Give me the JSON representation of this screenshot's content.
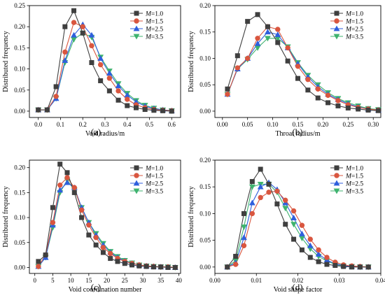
{
  "chart_data": [
    {
      "type": "line",
      "panel_label": "(a)",
      "xlabel": "Void radius/m",
      "ylabel": "Distributed frequency",
      "xlim": [
        -0.04,
        0.64
      ],
      "ylim": [
        -0.015,
        0.25
      ],
      "xticks": [
        0.0,
        0.1,
        0.2,
        0.3,
        0.4,
        0.5,
        0.6
      ],
      "xtick_labels": [
        "0.0",
        "0.1",
        "0.2",
        "0.3",
        "0.4",
        "0.5",
        "0.6"
      ],
      "yticks": [
        0.0,
        0.05,
        0.1,
        0.15,
        0.2,
        0.25
      ],
      "ytick_labels": [
        "0.00",
        "0.05",
        "0.10",
        "0.15",
        "0.20",
        "0.25"
      ],
      "legend_position": "top-right",
      "x": [
        0.0,
        0.04,
        0.08,
        0.12,
        0.16,
        0.2,
        0.24,
        0.28,
        0.32,
        0.36,
        0.4,
        0.44,
        0.48,
        0.52,
        0.56,
        0.6
      ],
      "series": [
        {
          "name": "M=1.0",
          "marker": "square",
          "color": "#3f3f3f",
          "values": [
            0.003,
            0.003,
            0.058,
            0.2,
            0.238,
            0.185,
            0.115,
            0.072,
            0.048,
            0.026,
            0.013,
            0.008,
            0.004,
            0.002,
            0.001,
            0.0
          ]
        },
        {
          "name": "M=1.5",
          "marker": "circle",
          "color": "#d9563f",
          "values": [
            0.003,
            0.003,
            0.035,
            0.14,
            0.21,
            0.2,
            0.155,
            0.11,
            0.078,
            0.048,
            0.028,
            0.015,
            0.008,
            0.004,
            0.002,
            0.001
          ]
        },
        {
          "name": "M=2.5",
          "marker": "triangle-up",
          "color": "#2f5fdd",
          "values": [
            0.003,
            0.003,
            0.03,
            0.12,
            0.18,
            0.205,
            0.18,
            0.125,
            0.09,
            0.06,
            0.038,
            0.022,
            0.012,
            0.006,
            0.003,
            0.001
          ]
        },
        {
          "name": "M=3.5",
          "marker": "triangle-down",
          "color": "#3fb36f",
          "values": [
            0.003,
            0.003,
            0.03,
            0.115,
            0.17,
            0.185,
            0.175,
            0.128,
            0.095,
            0.065,
            0.042,
            0.025,
            0.014,
            0.007,
            0.003,
            0.001
          ]
        }
      ]
    },
    {
      "type": "line",
      "panel_label": "(b)",
      "xlabel": "Throat radius/m",
      "ylabel": "Distributed frequency",
      "xlim": [
        -0.015,
        0.315
      ],
      "ylim": [
        -0.012,
        0.2
      ],
      "xticks": [
        0.0,
        0.05,
        0.1,
        0.15,
        0.2,
        0.25,
        0.3
      ],
      "xtick_labels": [
        "0.00",
        "0.05",
        "0.10",
        "0.15",
        "0.20",
        "0.25",
        "0.30"
      ],
      "yticks": [
        0.0,
        0.05,
        0.1,
        0.15,
        0.2
      ],
      "ytick_labels": [
        "0.00",
        "0.05",
        "0.10",
        "0.15",
        "0.20"
      ],
      "legend_position": "top-right",
      "x": [
        0.01,
        0.03,
        0.05,
        0.07,
        0.09,
        0.11,
        0.13,
        0.15,
        0.17,
        0.19,
        0.21,
        0.23,
        0.25,
        0.27,
        0.29,
        0.31
      ],
      "series": [
        {
          "name": "M=1.0",
          "marker": "square",
          "color": "#3f3f3f",
          "values": [
            0.042,
            0.105,
            0.17,
            0.183,
            0.16,
            0.13,
            0.095,
            0.062,
            0.04,
            0.025,
            0.016,
            0.01,
            0.006,
            0.004,
            0.002,
            0.001
          ]
        },
        {
          "name": "M=1.5",
          "marker": "circle",
          "color": "#d9563f",
          "values": [
            0.032,
            0.082,
            0.1,
            0.138,
            0.16,
            0.155,
            0.12,
            0.085,
            0.06,
            0.042,
            0.03,
            0.02,
            0.012,
            0.007,
            0.004,
            0.002
          ]
        },
        {
          "name": "M=2.5",
          "marker": "triangle-up",
          "color": "#2f5fdd",
          "values": [
            0.032,
            0.08,
            0.1,
            0.128,
            0.15,
            0.145,
            0.12,
            0.09,
            0.065,
            0.046,
            0.032,
            0.022,
            0.014,
            0.008,
            0.004,
            0.002
          ]
        },
        {
          "name": "M=3.5",
          "marker": "triangle-down",
          "color": "#3fb36f",
          "values": [
            0.032,
            0.08,
            0.098,
            0.12,
            0.138,
            0.138,
            0.122,
            0.092,
            0.068,
            0.05,
            0.035,
            0.024,
            0.016,
            0.01,
            0.005,
            0.003
          ]
        }
      ]
    },
    {
      "type": "line",
      "panel_label": "(c)",
      "xlabel": "Void coordination number",
      "ylabel": "Distributed frequency",
      "xlim": [
        -1.5,
        40.5
      ],
      "ylim": [
        -0.012,
        0.215
      ],
      "xticks": [
        0,
        5,
        10,
        15,
        20,
        25,
        30,
        35,
        40
      ],
      "xtick_labels": [
        "0",
        "5",
        "10",
        "15",
        "20",
        "25",
        "30",
        "35",
        "40"
      ],
      "yticks": [
        0.0,
        0.05,
        0.1,
        0.15,
        0.2
      ],
      "ytick_labels": [
        "0.00",
        "0.05",
        "0.10",
        "0.15",
        "0.20"
      ],
      "legend_position": "top-right",
      "x": [
        1,
        3,
        5,
        7,
        9,
        11,
        13,
        15,
        17,
        19,
        21,
        23,
        25,
        27,
        29,
        31,
        33,
        35,
        37,
        39
      ],
      "series": [
        {
          "name": "M=1.0",
          "marker": "square",
          "color": "#3f3f3f",
          "values": [
            0.012,
            0.025,
            0.12,
            0.207,
            0.19,
            0.15,
            0.1,
            0.065,
            0.045,
            0.03,
            0.018,
            0.012,
            0.008,
            0.005,
            0.003,
            0.002,
            0.001,
            0.001,
            0.0,
            0.0
          ]
        },
        {
          "name": "M=1.5",
          "marker": "circle",
          "color": "#d9563f",
          "values": [
            0.002,
            0.025,
            0.09,
            0.165,
            0.18,
            0.16,
            0.115,
            0.085,
            0.06,
            0.04,
            0.028,
            0.018,
            0.012,
            0.008,
            0.005,
            0.003,
            0.002,
            0.001,
            0.001,
            0.0
          ]
        },
        {
          "name": "M=2.5",
          "marker": "triangle-up",
          "color": "#2f5fdd",
          "values": [
            0.002,
            0.02,
            0.085,
            0.155,
            0.17,
            0.16,
            0.12,
            0.09,
            0.065,
            0.045,
            0.03,
            0.02,
            0.013,
            0.008,
            0.005,
            0.003,
            0.002,
            0.001,
            0.001,
            0.0
          ]
        },
        {
          "name": "M=3.5",
          "marker": "triangle-down",
          "color": "#3fb36f",
          "values": [
            0.002,
            0.02,
            0.08,
            0.15,
            0.175,
            0.155,
            0.12,
            0.09,
            0.068,
            0.048,
            0.032,
            0.022,
            0.014,
            0.009,
            0.005,
            0.003,
            0.002,
            0.001,
            0.001,
            0.0
          ]
        }
      ]
    },
    {
      "type": "line",
      "panel_label": "(d)",
      "xlabel": "Void shape factor",
      "ylabel": "Distributed frequency",
      "xlim": [
        0.0,
        0.04
      ],
      "ylim": [
        -0.012,
        0.2
      ],
      "xticks": [
        0.0,
        0.01,
        0.02,
        0.03,
        0.04
      ],
      "xtick_labels": [
        "0.00",
        "0.01",
        "0.02",
        "0.03",
        "0.04"
      ],
      "yticks": [
        0.0,
        0.05,
        0.1,
        0.15,
        0.2
      ],
      "ytick_labels": [
        "0.00",
        "0.05",
        "0.10",
        "0.15",
        "0.20"
      ],
      "legend_position": "top-right",
      "x": [
        0.003,
        0.005,
        0.007,
        0.009,
        0.011,
        0.013,
        0.015,
        0.017,
        0.019,
        0.021,
        0.023,
        0.025,
        0.027,
        0.029,
        0.031,
        0.033,
        0.035,
        0.037
      ],
      "series": [
        {
          "name": "M=1.0",
          "marker": "square",
          "color": "#3f3f3f",
          "values": [
            0.0,
            0.02,
            0.1,
            0.16,
            0.183,
            0.155,
            0.118,
            0.08,
            0.052,
            0.032,
            0.018,
            0.01,
            0.005,
            0.003,
            0.001,
            0.0,
            0.0,
            0.0
          ]
        },
        {
          "name": "M=1.5",
          "marker": "circle",
          "color": "#d9563f",
          "values": [
            0.0,
            0.005,
            0.04,
            0.1,
            0.13,
            0.14,
            0.142,
            0.125,
            0.105,
            0.078,
            0.052,
            0.032,
            0.018,
            0.009,
            0.004,
            0.002,
            0.001,
            0.0
          ]
        },
        {
          "name": "M=2.5",
          "marker": "triangle-up",
          "color": "#2f5fdd",
          "values": [
            0.0,
            0.008,
            0.055,
            0.12,
            0.15,
            0.158,
            0.145,
            0.12,
            0.092,
            0.062,
            0.04,
            0.024,
            0.013,
            0.006,
            0.003,
            0.001,
            0.0,
            0.0
          ]
        },
        {
          "name": "M=3.5",
          "marker": "triangle-down",
          "color": "#3fb36f",
          "values": [
            0.0,
            0.012,
            0.075,
            0.15,
            0.155,
            0.155,
            0.14,
            0.11,
            0.08,
            0.054,
            0.034,
            0.02,
            0.011,
            0.005,
            0.002,
            0.001,
            0.0,
            0.0
          ]
        }
      ]
    }
  ]
}
